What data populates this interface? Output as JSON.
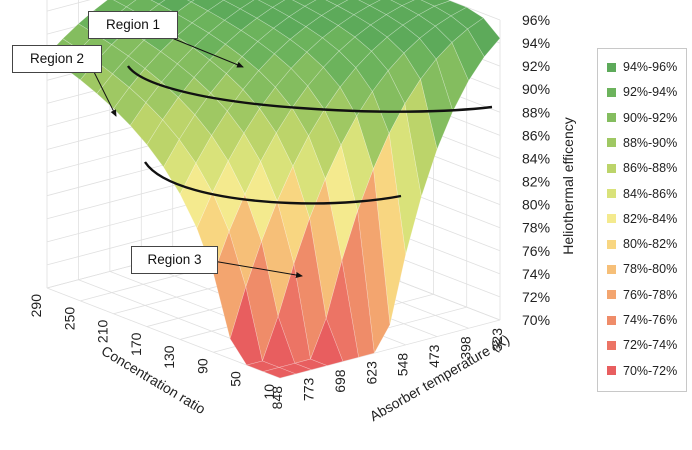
{
  "chart_data": {
    "type": "surface",
    "title": "",
    "xlabel": "Absorber temperature (K)",
    "ylabel": "Concentration ratio",
    "zlabel": "Heliothermal efficency",
    "x_ticks": [
      "848",
      "773",
      "698",
      "623",
      "548",
      "473",
      "398",
      "323"
    ],
    "y_ticks": [
      "10",
      "50",
      "90",
      "130",
      "170",
      "210",
      "250",
      "290"
    ],
    "z_ticks": [
      "70%",
      "72%",
      "74%",
      "76%",
      "78%",
      "80%",
      "82%",
      "84%",
      "86%",
      "88%",
      "90%",
      "92%",
      "94%",
      "96%"
    ],
    "zlim": [
      70,
      96
    ],
    "legend_position": "right",
    "legend": [
      {
        "label": "94%-96%",
        "color": "#5daa5a"
      },
      {
        "label": "92%-94%",
        "color": "#6cb35c"
      },
      {
        "label": "90%-92%",
        "color": "#84bd5f"
      },
      {
        "label": "88%-90%",
        "color": "#9fc863"
      },
      {
        "label": "86%-88%",
        "color": "#bcd46a"
      },
      {
        "label": "84%-86%",
        "color": "#d9e27a"
      },
      {
        "label": "82%-84%",
        "color": "#f4ea8e"
      },
      {
        "label": "80%-82%",
        "color": "#f8d681"
      },
      {
        "label": "78%-80%",
        "color": "#f6bf78"
      },
      {
        "label": "76%-78%",
        "color": "#f3a56f"
      },
      {
        "label": "74%-76%",
        "color": "#ef8c69"
      },
      {
        "label": "72%-74%",
        "color": "#ec7465"
      },
      {
        "label": "70%-72%",
        "color": "#e85e5f"
      }
    ],
    "annotations": [
      "Region 1",
      "Region 2",
      "Region 3"
    ]
  }
}
